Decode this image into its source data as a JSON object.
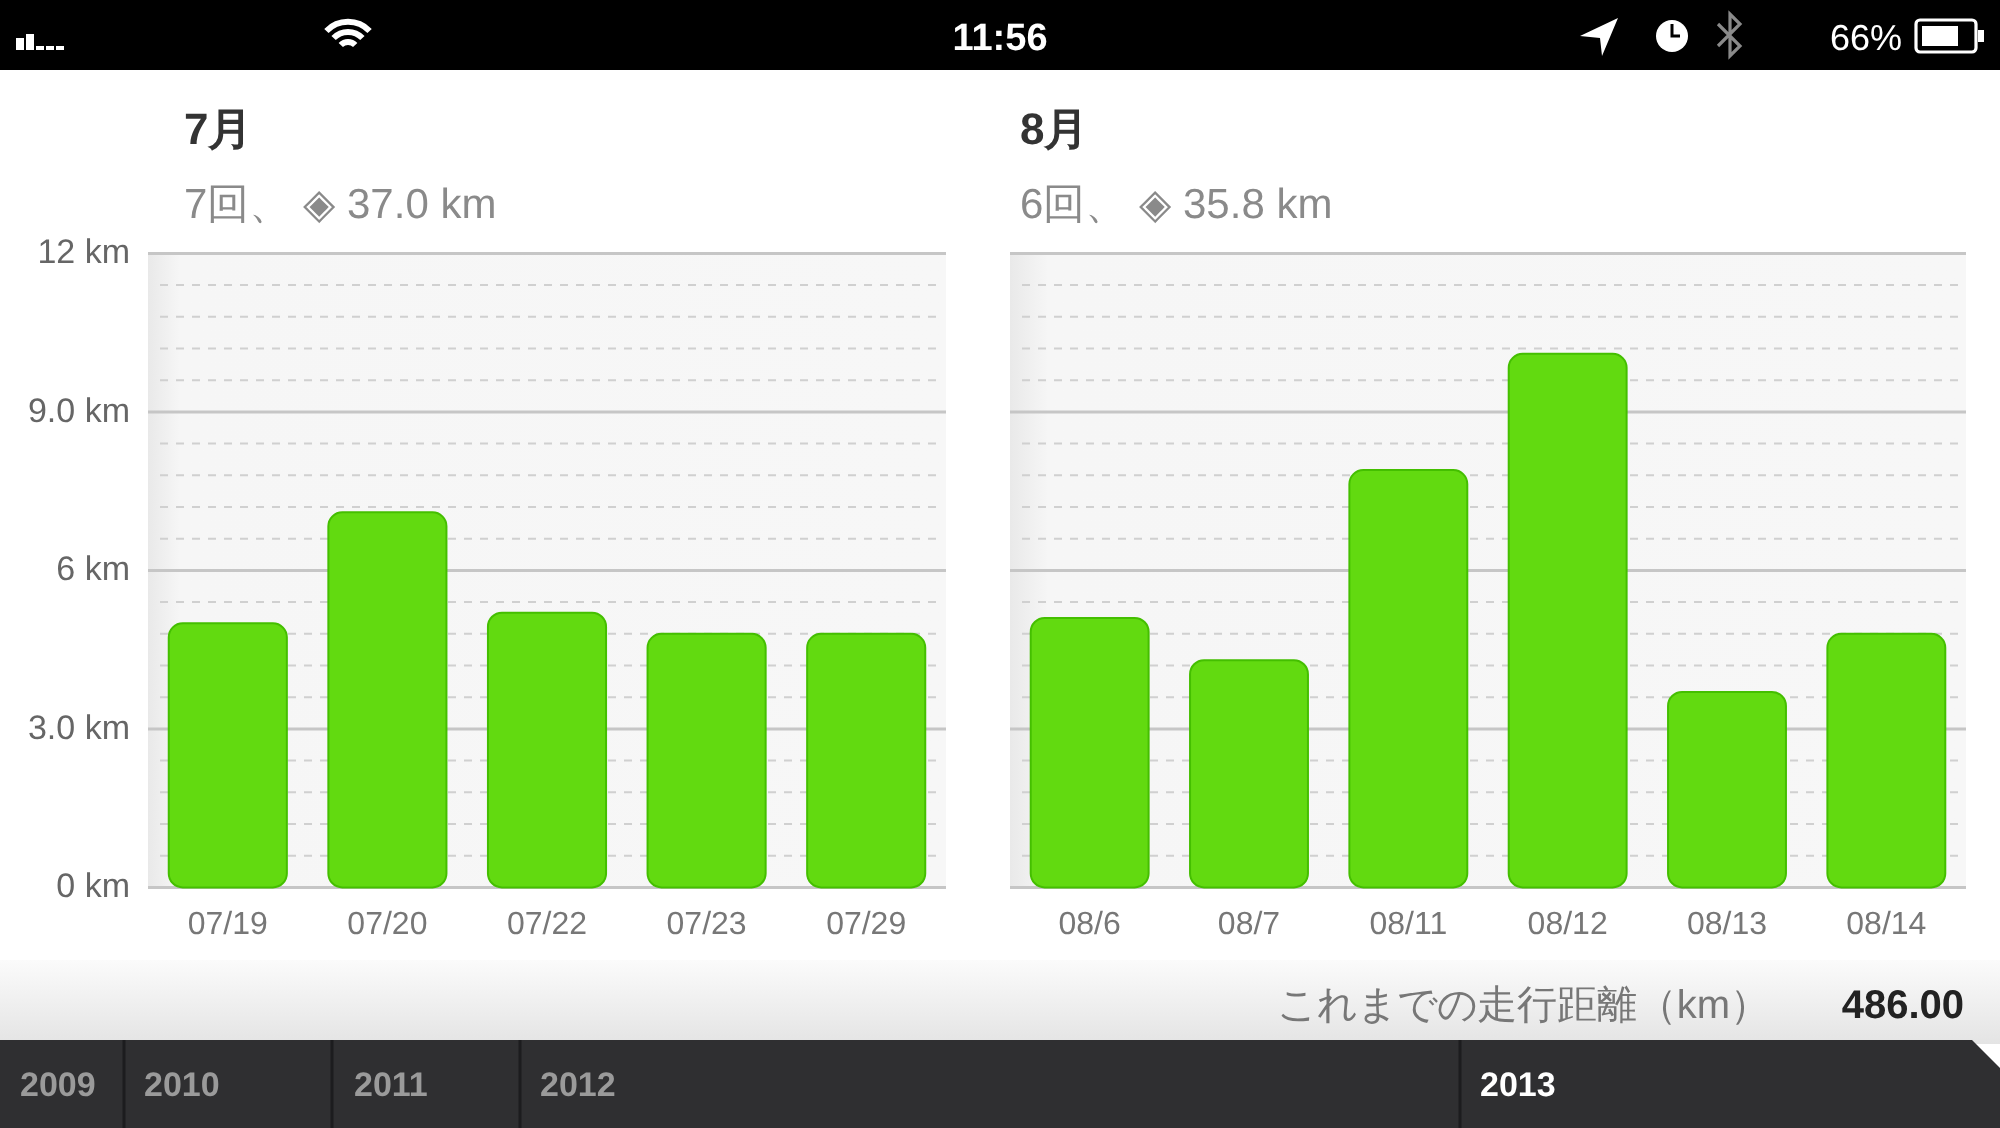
{
  "chart_data": [
    {
      "type": "bar",
      "title": "7月",
      "subtitle": "7回、 ◈ 37.0 km",
      "categories": [
        "07/19",
        "07/20",
        "07/22",
        "07/23",
        "07/29"
      ],
      "values": [
        5.0,
        7.1,
        5.2,
        4.8,
        4.8
      ],
      "color": "#62da10",
      "ylim": [
        0,
        12
      ],
      "yticks": [
        {
          "value": 0,
          "label": "0 km"
        },
        {
          "value": 0.6,
          "label": null
        },
        {
          "value": 1.2,
          "label": null
        },
        {
          "value": 1.8,
          "label": null
        },
        {
          "value": 2.4,
          "label": null
        },
        {
          "value": 3,
          "label": "3.0 km"
        },
        {
          "value": 3.6,
          "label": null
        },
        {
          "value": 4.2,
          "label": null
        },
        {
          "value": 4.8,
          "label": null
        },
        {
          "value": 5.4,
          "label": null
        },
        {
          "value": 6,
          "label": "6 km"
        },
        {
          "value": 6.6,
          "label": null
        },
        {
          "value": 7.2,
          "label": null
        },
        {
          "value": 7.8,
          "label": null
        },
        {
          "value": 8.4,
          "label": null
        },
        {
          "value": 9,
          "label": "9.0 km"
        },
        {
          "value": 9.6,
          "label": null
        },
        {
          "value": 10.2,
          "label": null
        },
        {
          "value": 10.8,
          "label": null
        },
        {
          "value": 11.4,
          "label": null
        },
        {
          "value": 12,
          "label": "12 km"
        }
      ],
      "grid": "y"
    },
    {
      "type": "bar",
      "title": "8月",
      "subtitle": "6回、 ◈ 35.8 km",
      "categories": [
        "08/6",
        "08/7",
        "08/11",
        "08/12",
        "08/13",
        "08/14"
      ],
      "values": [
        5.1,
        4.3,
        7.9,
        10.1,
        3.7,
        4.8
      ],
      "color": "#62da10",
      "ylim": [
        0,
        12
      ],
      "grid": "y",
      "tick_labels": "x"
    },
    {
      "type": "other",
      "annotations": [
        "11:56",
        "66%",
        "これまでの走行距離（km）",
        "486.00",
        "2009",
        "2010",
        "2011",
        "2012",
        "2013"
      ]
    }
  ]
}
